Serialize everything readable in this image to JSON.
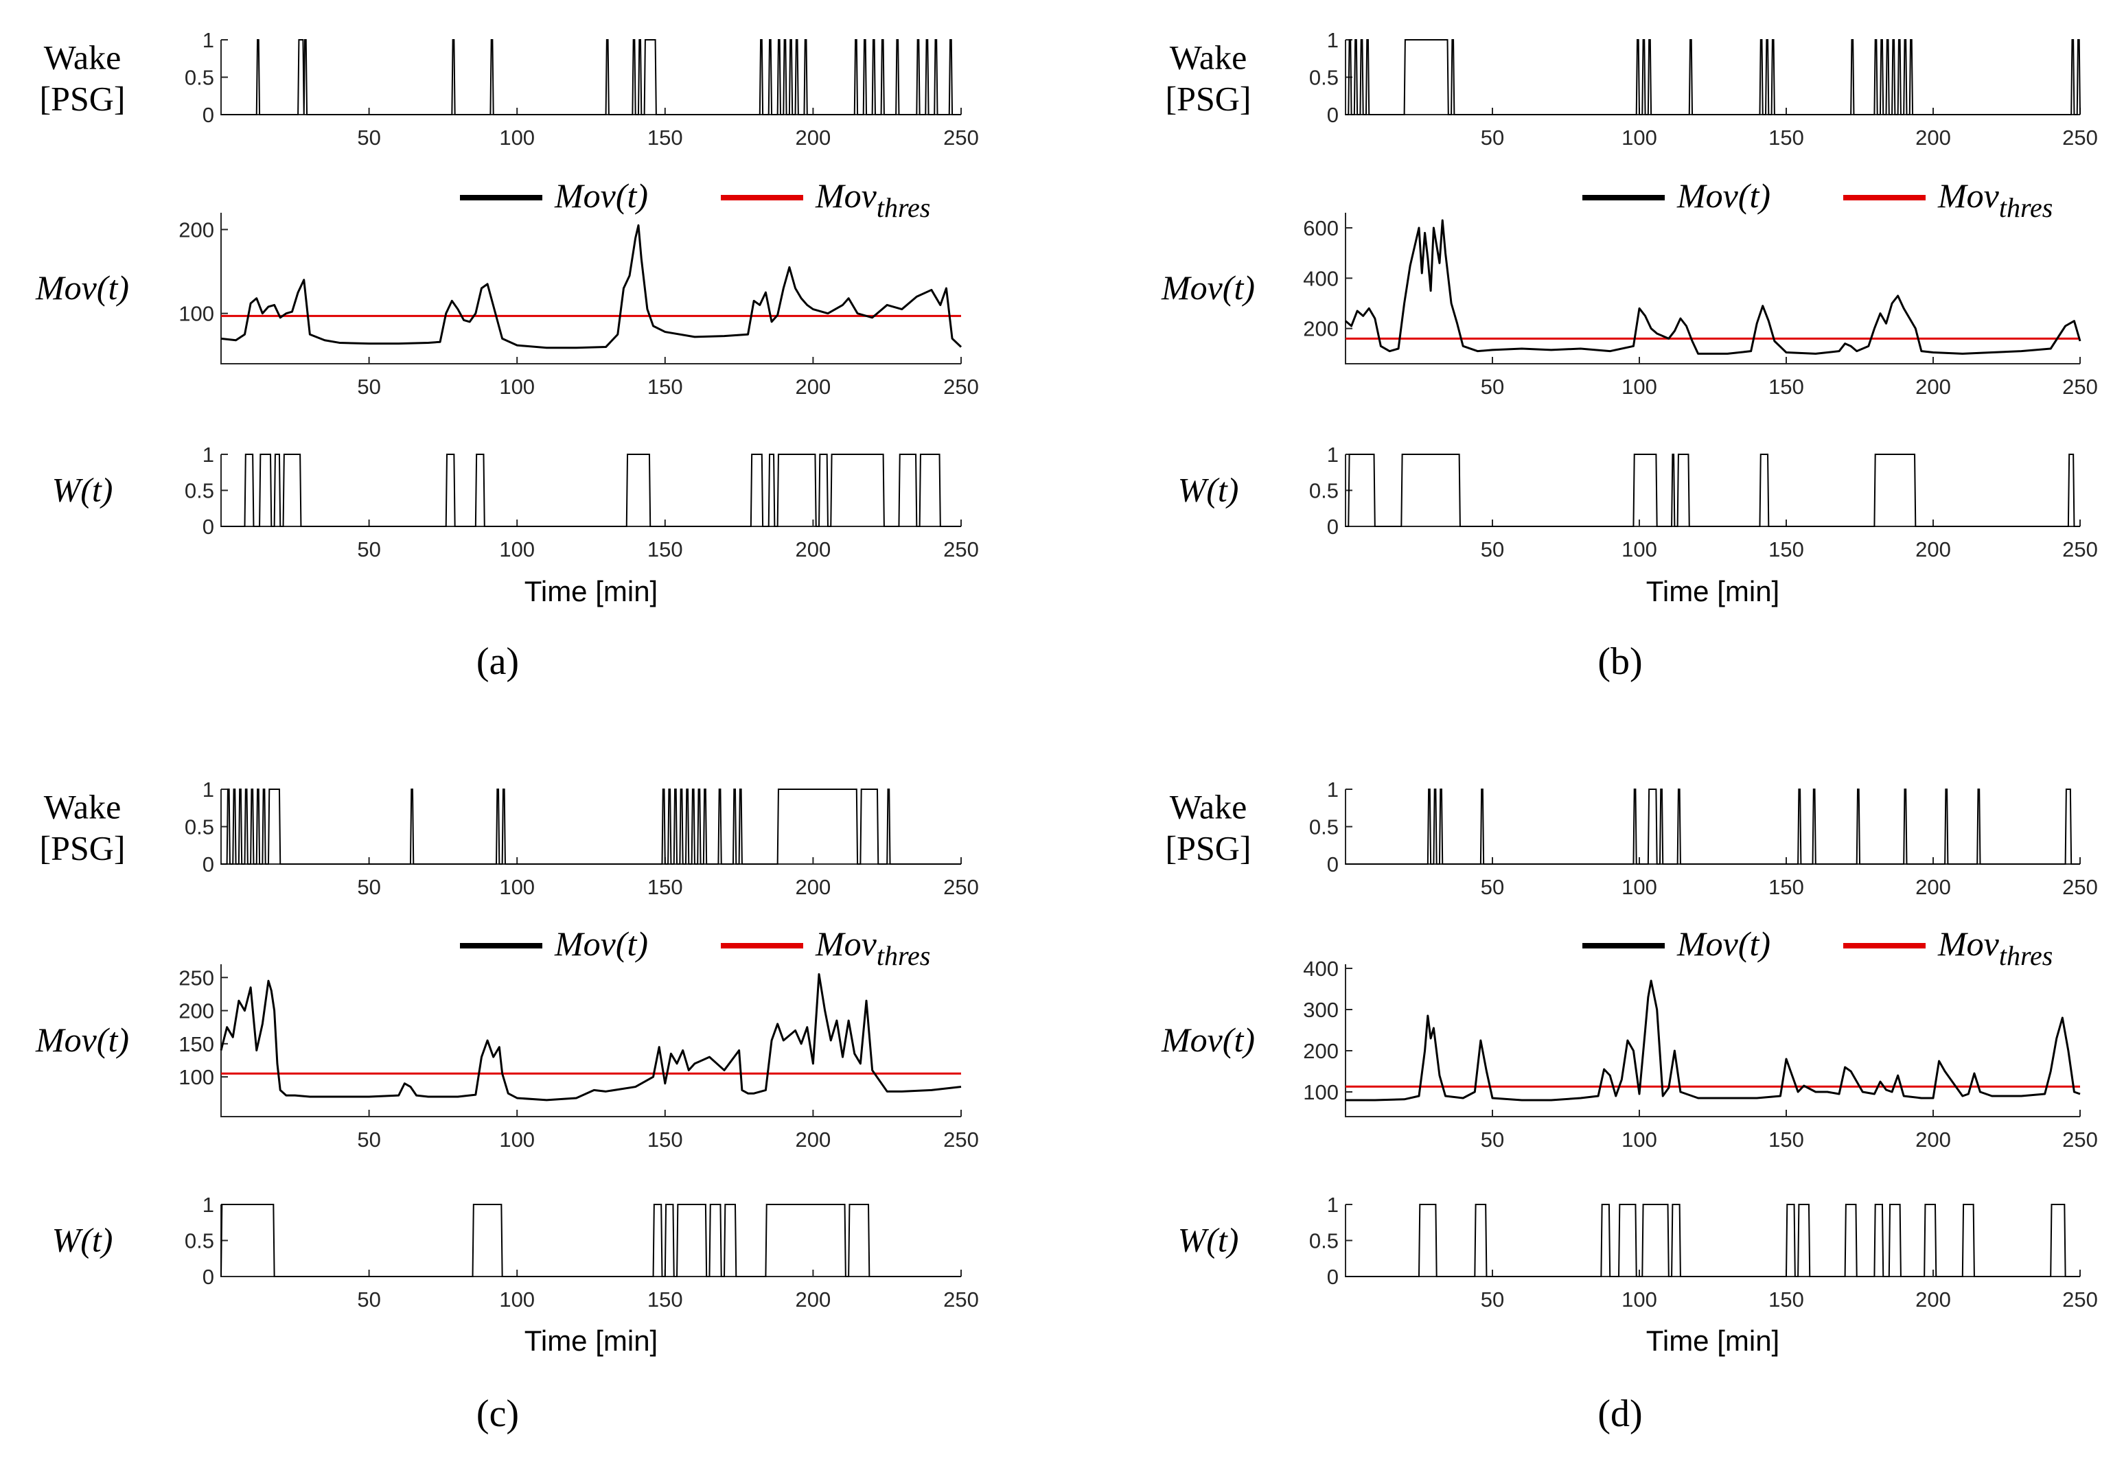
{
  "figure": {
    "xlabel": "Time [min]",
    "row_labels": {
      "wake_line1": "Wake",
      "wake_line2": "[PSG]",
      "mov": "Mov(t)",
      "w": "W(t)"
    },
    "legend": {
      "mov_label": "Mov(t)",
      "thres_base": "Mov",
      "thres_sub": "thres",
      "colors": {
        "mov": "#000000",
        "thres": "#e00000"
      }
    }
  },
  "chart_data": [
    {
      "panel": "(a)",
      "type": "line",
      "x_range": [
        0,
        250
      ],
      "x_ticks": [
        50,
        100,
        150,
        200,
        250
      ],
      "wake_psg": {
        "ylim": [
          0,
          1
        ],
        "y_ticks": [
          0,
          0.5,
          1
        ],
        "intervals": [
          [
            12,
            13
          ],
          [
            26,
            28
          ],
          [
            28,
            29
          ],
          [
            78,
            79
          ],
          [
            91,
            92
          ],
          [
            130,
            131
          ],
          [
            139,
            140
          ],
          [
            141,
            142
          ],
          [
            143,
            147
          ],
          [
            182,
            183
          ],
          [
            185,
            186
          ],
          [
            188,
            189
          ],
          [
            190,
            191
          ],
          [
            192,
            193
          ],
          [
            194,
            195
          ],
          [
            197,
            198
          ],
          [
            214,
            215
          ],
          [
            217,
            218
          ],
          [
            220,
            221
          ],
          [
            223,
            224
          ],
          [
            228,
            229
          ],
          [
            235,
            236
          ],
          [
            238,
            239
          ],
          [
            241,
            242
          ],
          [
            246,
            247
          ]
        ]
      },
      "mov": {
        "ylim": [
          40,
          220
        ],
        "y_ticks": [
          100,
          200
        ],
        "threshold": 97,
        "x": [
          0,
          5,
          8,
          10,
          12,
          14,
          16,
          18,
          20,
          22,
          24,
          26,
          28,
          30,
          35,
          40,
          50,
          60,
          70,
          74,
          76,
          78,
          80,
          82,
          84,
          86,
          88,
          90,
          95,
          100,
          110,
          120,
          130,
          134,
          136,
          138,
          140,
          141,
          142,
          144,
          146,
          150,
          160,
          170,
          178,
          180,
          182,
          184,
          186,
          188,
          190,
          192,
          194,
          196,
          198,
          200,
          205,
          210,
          212,
          215,
          220,
          225,
          230,
          235,
          240,
          243,
          245,
          247,
          250
        ],
        "y": [
          70,
          68,
          75,
          112,
          118,
          100,
          108,
          110,
          95,
          100,
          102,
          125,
          140,
          75,
          68,
          65,
          64,
          64,
          65,
          66,
          100,
          115,
          105,
          92,
          90,
          100,
          130,
          135,
          70,
          62,
          59,
          59,
          60,
          75,
          130,
          145,
          190,
          205,
          165,
          105,
          85,
          78,
          72,
          73,
          75,
          115,
          110,
          125,
          90,
          98,
          130,
          155,
          130,
          118,
          110,
          105,
          100,
          110,
          118,
          100,
          95,
          110,
          105,
          120,
          128,
          110,
          130,
          70,
          60
        ]
      },
      "w": {
        "ylim": [
          0,
          1
        ],
        "y_ticks": [
          0,
          0.5,
          1
        ],
        "intervals": [
          [
            8,
            11
          ],
          [
            13,
            17
          ],
          [
            18,
            20
          ],
          [
            21,
            27
          ],
          [
            76,
            79
          ],
          [
            86,
            89
          ],
          [
            137,
            145
          ],
          [
            179,
            183
          ],
          [
            185,
            187
          ],
          [
            188,
            201
          ],
          [
            202,
            205
          ],
          [
            206,
            224
          ],
          [
            229,
            235
          ],
          [
            236,
            243
          ]
        ]
      }
    },
    {
      "panel": "(b)",
      "type": "line",
      "x_range": [
        0,
        250
      ],
      "x_ticks": [
        50,
        100,
        150,
        200,
        250
      ],
      "wake_psg": {
        "ylim": [
          0,
          1
        ],
        "y_ticks": [
          0,
          0.5,
          1
        ],
        "intervals": [
          [
            1,
            2
          ],
          [
            3,
            4
          ],
          [
            5,
            6
          ],
          [
            7,
            8
          ],
          [
            20,
            35
          ],
          [
            36,
            37
          ],
          [
            99,
            100
          ],
          [
            101,
            102
          ],
          [
            103,
            104
          ],
          [
            117,
            118
          ],
          [
            141,
            142
          ],
          [
            143,
            144
          ],
          [
            145,
            146
          ],
          [
            172,
            173
          ],
          [
            180,
            181
          ],
          [
            182,
            183
          ],
          [
            184,
            185
          ],
          [
            186,
            187
          ],
          [
            188,
            189
          ],
          [
            190,
            191
          ],
          [
            192,
            193
          ],
          [
            247,
            248
          ],
          [
            249,
            250
          ]
        ]
      },
      "mov": {
        "ylim": [
          60,
          660
        ],
        "y_ticks": [
          200,
          400,
          600
        ],
        "threshold": 160,
        "x": [
          0,
          2,
          4,
          6,
          8,
          10,
          12,
          15,
          18,
          20,
          22,
          24,
          25,
          26,
          27,
          28,
          29,
          30,
          32,
          33,
          34,
          36,
          38,
          40,
          45,
          50,
          60,
          70,
          80,
          90,
          98,
          100,
          102,
          104,
          106,
          110,
          112,
          114,
          116,
          118,
          120,
          130,
          138,
          140,
          142,
          144,
          146,
          150,
          160,
          168,
          170,
          172,
          174,
          178,
          180,
          182,
          184,
          186,
          188,
          190,
          192,
          194,
          196,
          200,
          210,
          220,
          230,
          240,
          245,
          248,
          250
        ],
        "y": [
          230,
          210,
          270,
          250,
          280,
          240,
          130,
          110,
          120,
          300,
          450,
          550,
          600,
          420,
          580,
          480,
          350,
          600,
          460,
          630,
          500,
          300,
          220,
          130,
          110,
          115,
          120,
          115,
          120,
          110,
          130,
          280,
          250,
          200,
          180,
          160,
          190,
          240,
          210,
          150,
          100,
          100,
          110,
          220,
          290,
          230,
          150,
          105,
          100,
          110,
          140,
          130,
          110,
          130,
          200,
          260,
          220,
          300,
          330,
          280,
          240,
          200,
          110,
          105,
          100,
          105,
          110,
          120,
          210,
          230,
          150
        ]
      },
      "w": {
        "ylim": [
          0,
          1
        ],
        "y_ticks": [
          0,
          0.5,
          1
        ],
        "intervals": [
          [
            1,
            10
          ],
          [
            19,
            39
          ],
          [
            98,
            106
          ],
          [
            111,
            112
          ],
          [
            113,
            117
          ],
          [
            141,
            144
          ],
          [
            180,
            194
          ],
          [
            246,
            248
          ]
        ]
      }
    },
    {
      "panel": "(c)",
      "type": "line",
      "x_range": [
        0,
        250
      ],
      "x_ticks": [
        50,
        100,
        150,
        200,
        250
      ],
      "wake_psg": {
        "ylim": [
          0,
          1
        ],
        "y_ticks": [
          0,
          0.5,
          1
        ],
        "intervals": [
          [
            2,
            3
          ],
          [
            4,
            5
          ],
          [
            6,
            7
          ],
          [
            8,
            9
          ],
          [
            10,
            11
          ],
          [
            12,
            13
          ],
          [
            14,
            15
          ],
          [
            16,
            20
          ],
          [
            64,
            65
          ],
          [
            93,
            94
          ],
          [
            95,
            96
          ],
          [
            149,
            150
          ],
          [
            151,
            152
          ],
          [
            153,
            154
          ],
          [
            155,
            156
          ],
          [
            157,
            158
          ],
          [
            159,
            160
          ],
          [
            161,
            162
          ],
          [
            163,
            164
          ],
          [
            168,
            169
          ],
          [
            173,
            174
          ],
          [
            175,
            176
          ],
          [
            188,
            215
          ],
          [
            216,
            222
          ],
          [
            225,
            226
          ]
        ]
      },
      "mov": {
        "ylim": [
          40,
          270
        ],
        "y_ticks": [
          100,
          150,
          200,
          250
        ],
        "threshold": 105,
        "x": [
          0,
          2,
          4,
          6,
          8,
          10,
          12,
          14,
          16,
          17,
          18,
          19,
          20,
          22,
          25,
          30,
          40,
          50,
          60,
          62,
          64,
          66,
          70,
          80,
          86,
          88,
          90,
          92,
          94,
          95,
          97,
          100,
          110,
          120,
          126,
          130,
          140,
          146,
          148,
          150,
          152,
          154,
          156,
          158,
          160,
          165,
          170,
          175,
          176,
          178,
          180,
          184,
          186,
          188,
          190,
          194,
          196,
          198,
          200,
          202,
          204,
          206,
          208,
          210,
          212,
          214,
          216,
          218,
          220,
          225,
          230,
          240,
          250
        ],
        "y": [
          140,
          175,
          160,
          215,
          200,
          235,
          140,
          180,
          245,
          230,
          200,
          120,
          80,
          72,
          72,
          70,
          70,
          70,
          72,
          90,
          85,
          72,
          70,
          70,
          73,
          130,
          155,
          130,
          145,
          105,
          75,
          68,
          65,
          68,
          80,
          78,
          85,
          100,
          145,
          90,
          135,
          120,
          140,
          110,
          120,
          130,
          110,
          140,
          80,
          75,
          75,
          80,
          155,
          180,
          155,
          170,
          150,
          175,
          120,
          255,
          200,
          155,
          185,
          130,
          185,
          135,
          120,
          215,
          110,
          78,
          78,
          80,
          85
        ]
      },
      "w": {
        "ylim": [
          0,
          1
        ],
        "y_ticks": [
          0,
          0.5,
          1
        ],
        "intervals": [
          [
            0,
            18
          ],
          [
            85,
            95
          ],
          [
            146,
            149
          ],
          [
            150,
            153
          ],
          [
            154,
            164
          ],
          [
            165,
            169
          ],
          [
            170,
            174
          ],
          [
            184,
            211
          ],
          [
            212,
            219
          ]
        ]
      }
    },
    {
      "panel": "(d)",
      "type": "line",
      "x_range": [
        0,
        250
      ],
      "x_ticks": [
        50,
        100,
        150,
        200,
        250
      ],
      "wake_psg": {
        "ylim": [
          0,
          1
        ],
        "y_ticks": [
          0,
          0.5,
          1
        ],
        "intervals": [
          [
            28,
            29
          ],
          [
            30,
            31
          ],
          [
            32,
            33
          ],
          [
            46,
            47
          ],
          [
            98,
            99
          ],
          [
            103,
            106
          ],
          [
            107,
            108
          ],
          [
            113,
            114
          ],
          [
            154,
            155
          ],
          [
            159,
            160
          ],
          [
            174,
            175
          ],
          [
            190,
            191
          ],
          [
            204,
            205
          ],
          [
            215,
            216
          ],
          [
            245,
            247
          ]
        ]
      },
      "mov": {
        "ylim": [
          40,
          410
        ],
        "y_ticks": [
          100,
          200,
          300,
          400
        ],
        "threshold": 113,
        "x": [
          0,
          10,
          20,
          25,
          27,
          28,
          29,
          30,
          32,
          34,
          40,
          44,
          46,
          48,
          50,
          60,
          70,
          80,
          86,
          88,
          90,
          92,
          94,
          96,
          98,
          100,
          102,
          103,
          104,
          106,
          108,
          110,
          112,
          114,
          120,
          140,
          148,
          150,
          152,
          154,
          156,
          160,
          164,
          168,
          170,
          172,
          176,
          180,
          182,
          184,
          186,
          188,
          190,
          196,
          200,
          202,
          204,
          210,
          212,
          214,
          216,
          220,
          230,
          238,
          240,
          242,
          244,
          246,
          248,
          250
        ],
        "y": [
          80,
          80,
          82,
          90,
          200,
          285,
          230,
          255,
          140,
          90,
          85,
          100,
          225,
          150,
          85,
          80,
          80,
          85,
          90,
          155,
          140,
          90,
          130,
          225,
          200,
          95,
          250,
          330,
          370,
          300,
          90,
          110,
          200,
          100,
          85,
          85,
          90,
          180,
          140,
          100,
          115,
          100,
          100,
          95,
          160,
          150,
          100,
          95,
          125,
          105,
          100,
          140,
          90,
          85,
          85,
          175,
          150,
          90,
          95,
          145,
          100,
          90,
          90,
          95,
          150,
          230,
          280,
          200,
          100,
          95
        ]
      },
      "w": {
        "ylim": [
          0,
          1
        ],
        "y_ticks": [
          0,
          0.5,
          1
        ],
        "intervals": [
          [
            25,
            31
          ],
          [
            44,
            48
          ],
          [
            87,
            90
          ],
          [
            93,
            99
          ],
          [
            101,
            110
          ],
          [
            111,
            114
          ],
          [
            150,
            153
          ],
          [
            154,
            158
          ],
          [
            170,
            174
          ],
          [
            180,
            183
          ],
          [
            185,
            189
          ],
          [
            197,
            201
          ],
          [
            210,
            214
          ],
          [
            240,
            245
          ]
        ]
      }
    }
  ]
}
